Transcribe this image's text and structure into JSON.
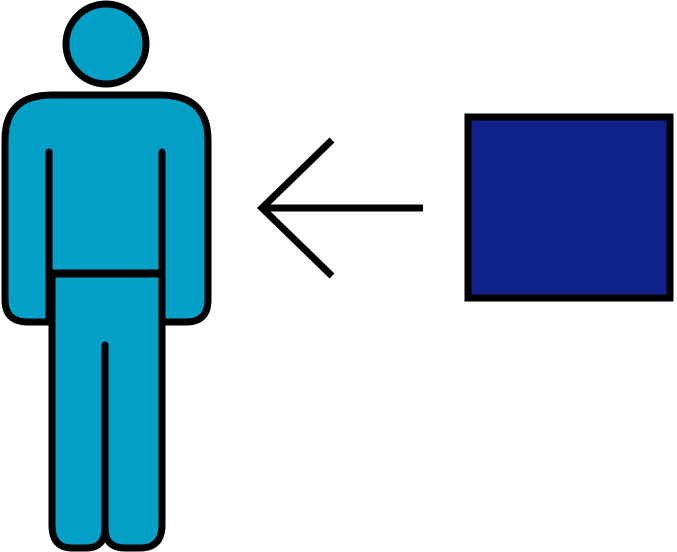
{
  "diagram": {
    "person": {
      "icon": "person-icon",
      "fill_color": "#05A0C8",
      "stroke_color": "#000000"
    },
    "arrow": {
      "icon": "arrow-left-icon",
      "direction": "left",
      "stroke_color": "#000000"
    },
    "box": {
      "icon": "square-box",
      "fill_color": "#10218B",
      "stroke_color": "#000000"
    }
  }
}
